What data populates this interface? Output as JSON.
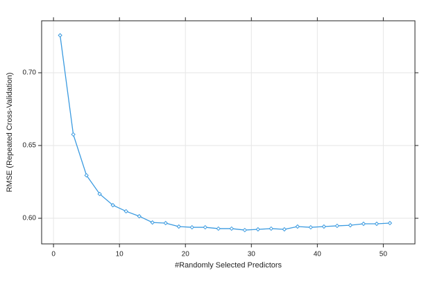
{
  "chart_data": {
    "type": "line",
    "x_label": "#Randomly Selected Predictors",
    "y_label": "RMSE (Repeated Cross-Validation)",
    "x": [
      1,
      3,
      5,
      7,
      9,
      11,
      13,
      15,
      17,
      19,
      21,
      23,
      25,
      27,
      29,
      31,
      33,
      35,
      37,
      39,
      41,
      43,
      45,
      47,
      49,
      51
    ],
    "series": [
      {
        "color": "#3a9ae0",
        "values": [
          0.7257,
          0.6576,
          0.6295,
          0.6167,
          0.609,
          0.6048,
          0.6014,
          0.5971,
          0.5967,
          0.5943,
          0.5938,
          0.5938,
          0.5929,
          0.5929,
          0.5919,
          0.5924,
          0.5929,
          0.5924,
          0.5943,
          0.5938,
          0.5943,
          0.5948,
          0.5952,
          0.5962,
          0.5962,
          0.5967
        ]
      }
    ],
    "xlim": [
      -1.8,
      54.8
    ],
    "xticks": [
      0,
      10,
      20,
      30,
      40,
      50
    ],
    "ylim": [
      0.5824,
      0.7357
    ],
    "yticks": [
      {
        "value": 0.6,
        "label": "0.60"
      },
      {
        "value": 0.65,
        "label": "0.65"
      },
      {
        "value": 0.7,
        "label": "0.70"
      }
    ],
    "grid": true
  }
}
